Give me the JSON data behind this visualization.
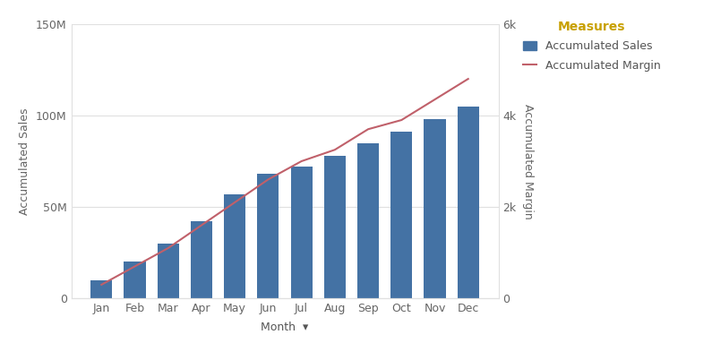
{
  "months": [
    "Jan",
    "Feb",
    "Mar",
    "Apr",
    "May",
    "Jun",
    "Jul",
    "Aug",
    "Sep",
    "Oct",
    "Nov",
    "Dec"
  ],
  "accumulated_sales": [
    10000000,
    20000000,
    30000000,
    42000000,
    57000000,
    68000000,
    72000000,
    78000000,
    85000000,
    91000000,
    98000000,
    105000000
  ],
  "accumulated_margin": [
    300,
    700,
    1100,
    1600,
    2100,
    2600,
    3000,
    3250,
    3700,
    3900,
    4350,
    4800
  ],
  "bar_color": "#4472A4",
  "line_color": "#C0606A",
  "ylabel_left": "Accumulated Sales",
  "ylabel_right": "Accumulated Margin",
  "xlabel": "Month",
  "legend_title": "Measures",
  "legend_title_color": "#C8A000",
  "legend_bar_label": "Accumulated Sales",
  "legend_line_label": "Accumulated Margin",
  "legend_text_color": "#555555",
  "ylim_left": [
    0,
    150000000
  ],
  "ylim_right": [
    0,
    6000
  ],
  "yticks_left": [
    0,
    50000000,
    100000000,
    150000000
  ],
  "yticks_right": [
    0,
    2000,
    4000,
    6000
  ],
  "background_color": "#ffffff",
  "grid_color": "#e0e0e0",
  "axis_fontsize": 9,
  "tick_fontsize": 9,
  "legend_fontsize": 9,
  "legend_title_fontsize": 10
}
